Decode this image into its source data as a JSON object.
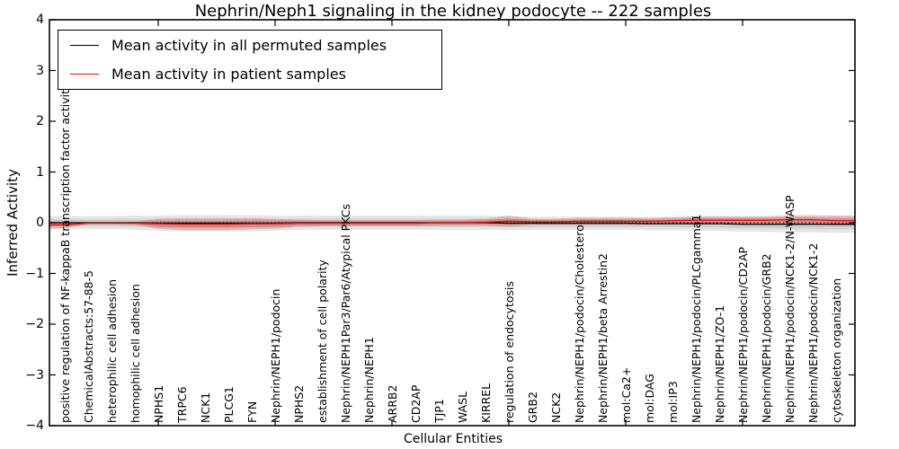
{
  "title": "Nephrin/Neph1 signaling in the kidney podocyte -- 222 samples",
  "xlabel": "Cellular Entities",
  "ylabel": "Inferred Activity",
  "legend": [
    {
      "label": "Mean activity in all permuted samples",
      "color": "#000000"
    },
    {
      "label": "Mean activity in patient samples",
      "color": "#e01212"
    }
  ],
  "yticks": [
    {
      "label": "4",
      "v": 4
    },
    {
      "label": "3",
      "v": 3
    },
    {
      "label": "2",
      "v": 2
    },
    {
      "label": "1",
      "v": 1
    },
    {
      "label": "0",
      "v": 0
    },
    {
      "label": "−1",
      "v": -1
    },
    {
      "label": "−2",
      "v": -2
    },
    {
      "label": "−3",
      "v": -3
    },
    {
      "label": "−4",
      "v": -4
    }
  ],
  "chart_data": {
    "type": "line",
    "title": "Nephrin/Neph1 signaling in the kidney podocyte -- 222 samples",
    "xlabel": "Cellular Entities",
    "ylabel": "Inferred Activity",
    "ylim": [
      -4,
      4
    ],
    "grid": false,
    "legend_position": "upper left",
    "zero_line": true,
    "categories": [
      "positive regulation of NF-kappaB transcription factor activity",
      "ChemicalAbstracts:57-88-5",
      "heterophilic cell adhesion",
      "homophilic cell adhesion",
      "NPHS1",
      "TRPC6",
      "NCK1",
      "PLCG1",
      "FYN",
      "Nephrin/NEPH1/podocin",
      "NPHS2",
      "establishment of cell polarity",
      "Nephrin/NEPH1Par3/Par6/Atypical PKCs",
      "Nephrin/NEPH1",
      "ARRB2",
      "CD2AP",
      "TJP1",
      "WASL",
      "KIRREL",
      "regulation of endocytosis",
      "GRB2",
      "NCK2",
      "Nephrin/NEPH1/podocin/Cholesterol",
      "Nephrin/NEPH1/beta Arrestin2",
      "mol:Ca2+",
      "mol:DAG",
      "mol:IP3",
      "Nephrin/NEPH1/podocin/PLCgamma1",
      "Nephrin/NEPH1/ZO-1",
      "Nephrin/NEPH1/podocin/CD2AP",
      "Nephrin/NEPH1/podocin/GRB2",
      "Nephrin/NEPH1/podocin/NCK1-2/N-WASP",
      "Nephrin/NEPH1/podocin/NCK1-2",
      "cytoskeleton organization"
    ],
    "series": [
      {
        "name": "Mean activity in all permuted samples",
        "color": "#000000",
        "band_color": "#000000",
        "values": [
          0,
          0,
          0,
          0,
          -0.01,
          -0.01,
          -0.01,
          -0.01,
          -0.01,
          -0.01,
          0,
          0,
          0,
          0,
          0,
          0,
          0,
          0,
          0,
          -0.01,
          -0.01,
          -0.01,
          -0.01,
          -0.01,
          -0.01,
          -0.02,
          -0.02,
          -0.02,
          -0.02,
          -0.03,
          -0.03,
          -0.03,
          -0.03,
          -0.03
        ],
        "band_halfwidth": [
          0.13,
          0.13,
          0.13,
          0.14,
          0.15,
          0.16,
          0.16,
          0.16,
          0.16,
          0.15,
          0.14,
          0.14,
          0.14,
          0.14,
          0.14,
          0.14,
          0.14,
          0.14,
          0.14,
          0.14,
          0.13,
          0.13,
          0.13,
          0.13,
          0.13,
          0.13,
          0.13,
          0.14,
          0.14,
          0.15,
          0.15,
          0.16,
          0.16,
          0.17
        ]
      },
      {
        "name": "Mean activity in patient samples",
        "color": "#e01212",
        "band_color": "#cc1111",
        "values": [
          -0.04,
          -0.01,
          -0.01,
          -0.01,
          -0.02,
          -0.03,
          -0.03,
          -0.03,
          -0.02,
          -0.02,
          -0.01,
          -0.01,
          -0.01,
          -0.01,
          -0.01,
          -0.01,
          0,
          0,
          0.01,
          0.03,
          0.02,
          0.02,
          0.03,
          0.03,
          0.03,
          0.03,
          0.04,
          0.05,
          0.05,
          0.05,
          0.05,
          0.06,
          0.06,
          0.04
        ],
        "band_halfwidth": [
          0.07,
          0.02,
          0.02,
          0.03,
          0.1,
          0.12,
          0.12,
          0.12,
          0.11,
          0.1,
          0.07,
          0.06,
          0.06,
          0.06,
          0.06,
          0.06,
          0.06,
          0.06,
          0.07,
          0.11,
          0.06,
          0.06,
          0.07,
          0.07,
          0.07,
          0.07,
          0.07,
          0.08,
          0.08,
          0.08,
          0.08,
          0.09,
          0.09,
          0.1
        ]
      }
    ],
    "x_major_tick_indices": [
      4,
      9,
      14,
      19,
      24,
      29
    ]
  }
}
